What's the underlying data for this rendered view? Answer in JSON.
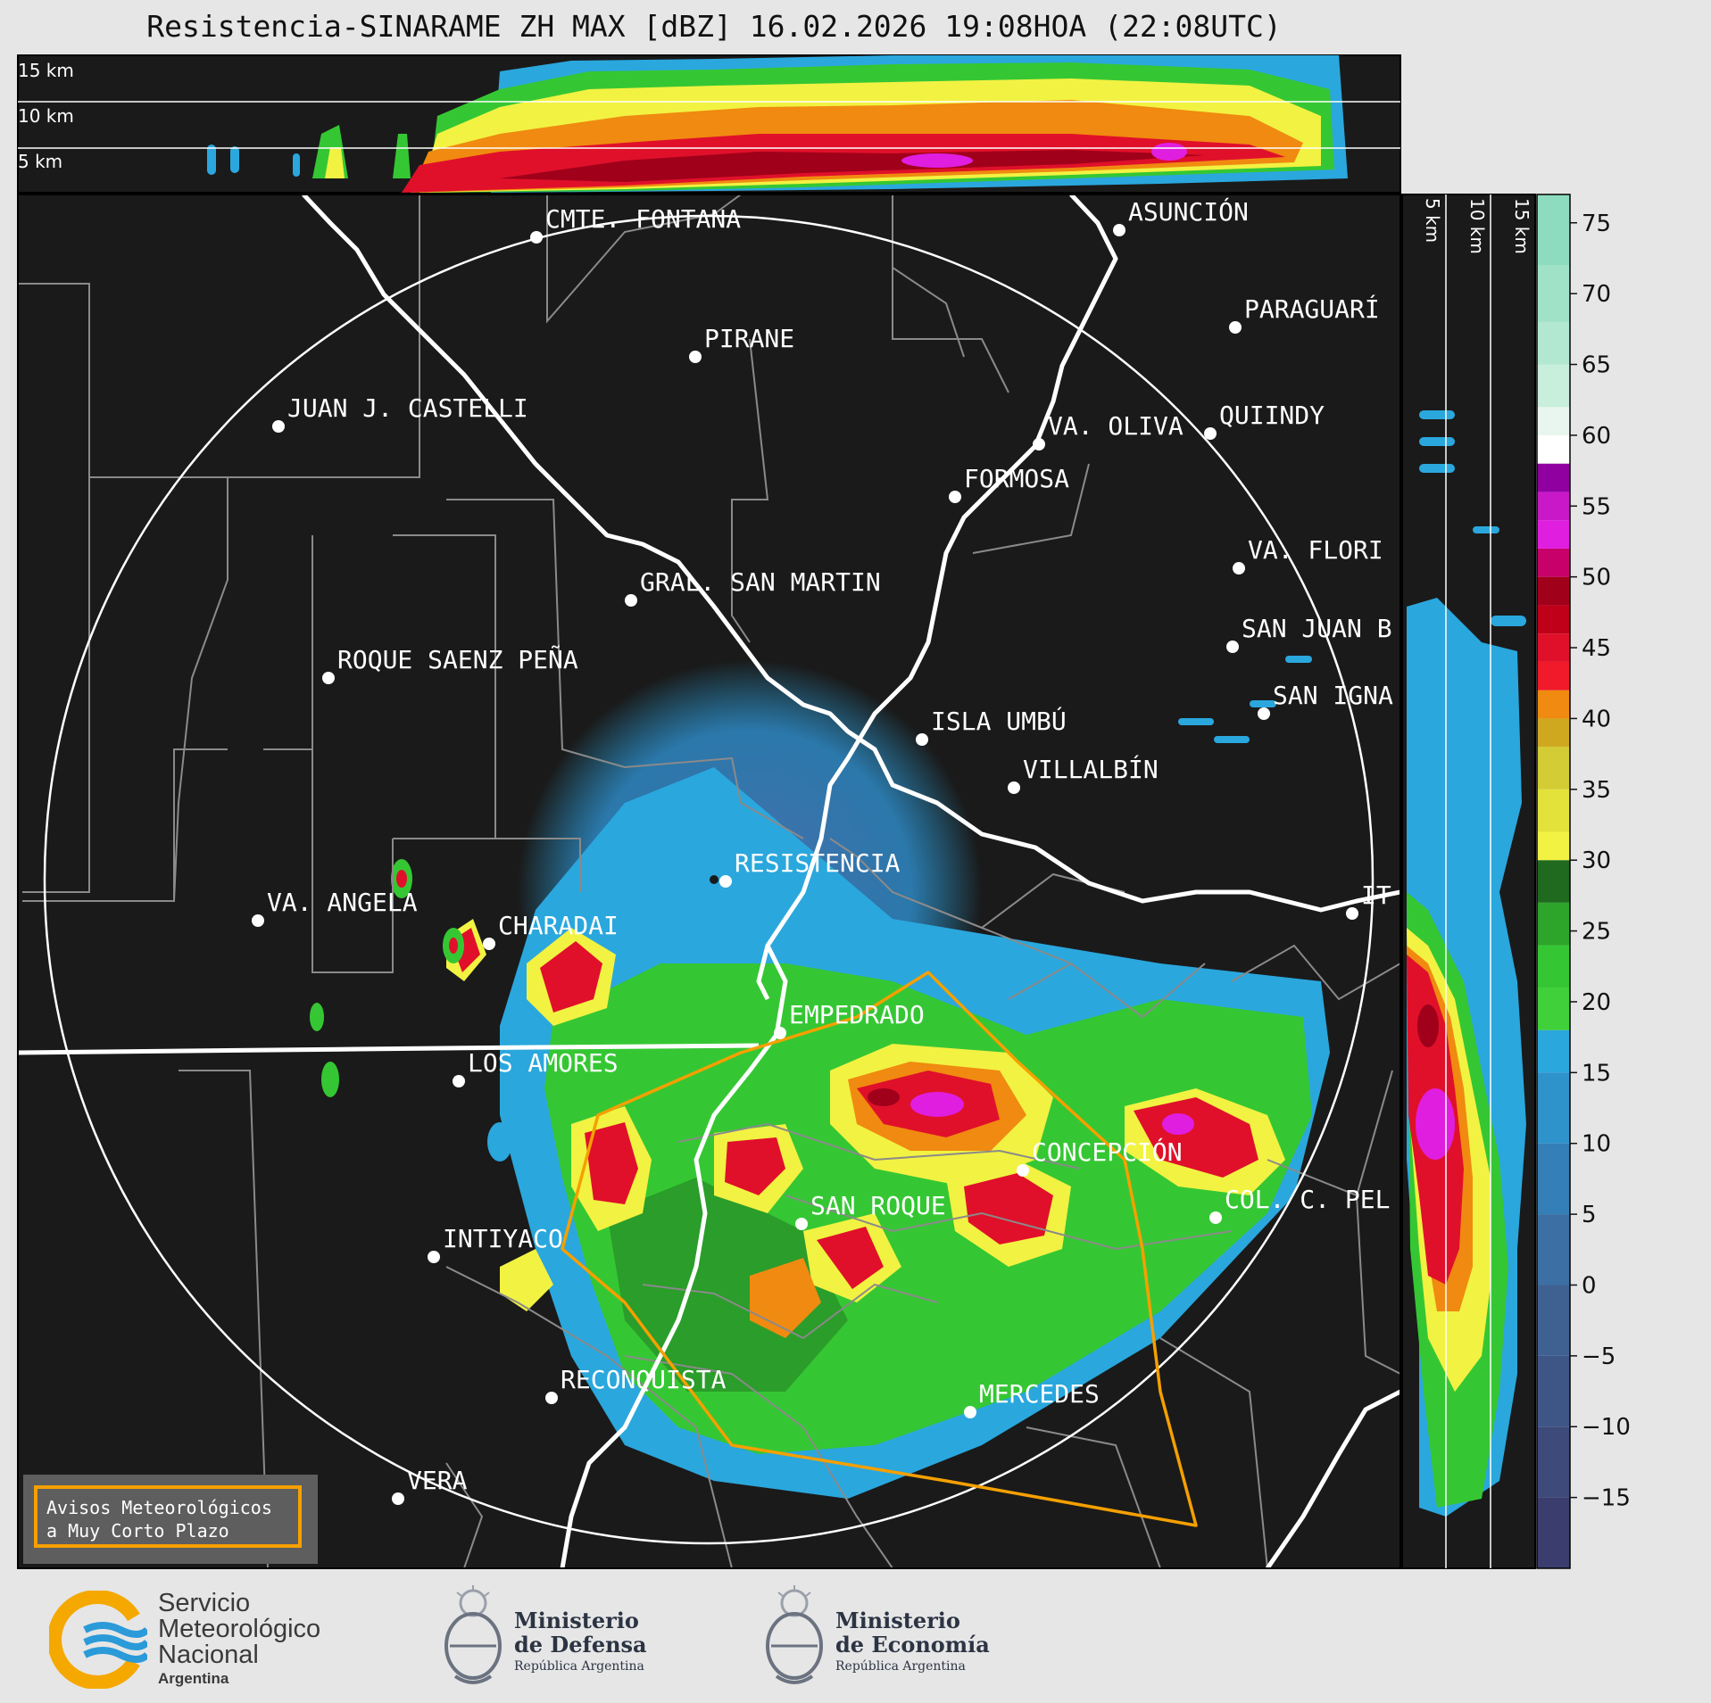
{
  "title": "Resistencia-SINARAME ZH MAX [dBZ] 16.02.2026 19:08HOA (22:08UTC)",
  "top_panel": {
    "height_labels": [
      "15 km",
      "10 km",
      "5 km"
    ]
  },
  "side_panel": {
    "height_labels": [
      "5 km",
      "10 km",
      "15 km"
    ]
  },
  "colorbar": {
    "unit": "dBZ",
    "ticks": [
      "75",
      "70",
      "65",
      "60",
      "55",
      "50",
      "45",
      "40",
      "35",
      "30",
      "25",
      "20",
      "15",
      "10",
      "5",
      "0",
      "−5",
      "−10",
      "−15"
    ],
    "colors": {
      "lowest": "#3a3d6e",
      "blue_low": "#3c6fa3",
      "blue": "#2aa7dd",
      "green_dark": "#1f6a1f",
      "green": "#35c733",
      "yellow": "#f2f242",
      "orange": "#f08a10",
      "red": "#e0102a",
      "dark_red": "#a0001a",
      "magenta": "#e01ee0",
      "purple": "#9000a0",
      "white": "#ffffff",
      "mint": "#8edcc0"
    }
  },
  "cities": [
    {
      "name": "CMTE. FONTANA"
    },
    {
      "name": "ASUNCIÓN"
    },
    {
      "name": "PARAGUARÍ"
    },
    {
      "name": "PIRANE"
    },
    {
      "name": "JUAN J. CASTELLI"
    },
    {
      "name": "VA. OLIVA"
    },
    {
      "name": "QUIINDY"
    },
    {
      "name": "FORMOSA"
    },
    {
      "name": "VA. FLORI"
    },
    {
      "name": "GRAL. SAN MARTIN"
    },
    {
      "name": "SAN JUAN B"
    },
    {
      "name": "ROQUE SAENZ PEÑA"
    },
    {
      "name": "SAN IGNA"
    },
    {
      "name": "ISLA UMBÚ"
    },
    {
      "name": "VILLALBÍN"
    },
    {
      "name": "RESISTENCIA"
    },
    {
      "name": "VA. ANGELA"
    },
    {
      "name": "CHARADAI"
    },
    {
      "name": "IT"
    },
    {
      "name": "EMPEDRADO"
    },
    {
      "name": "LOS AMORES"
    },
    {
      "name": "CONCEPCIÓN"
    },
    {
      "name": "SAN ROQUE"
    },
    {
      "name": "COL. C. PEL"
    },
    {
      "name": "INTIYACO"
    },
    {
      "name": "RECONQUISTA"
    },
    {
      "name": "MERCEDES"
    },
    {
      "name": "VERA"
    }
  ],
  "alert_box": {
    "line1": "Avisos Meteorológicos",
    "line2": "a Muy Corto Plazo"
  },
  "logos": {
    "smn": {
      "line1": "Servicio",
      "line2": "Meteorológico",
      "line3": "Nacional",
      "line4": "Argentina"
    },
    "defensa": {
      "line1": "Ministerio",
      "line2": "de Defensa",
      "line3": "República Argentina"
    },
    "economia": {
      "line1": "Ministerio",
      "line2": "de Economía",
      "line3": "República Argentina"
    }
  }
}
